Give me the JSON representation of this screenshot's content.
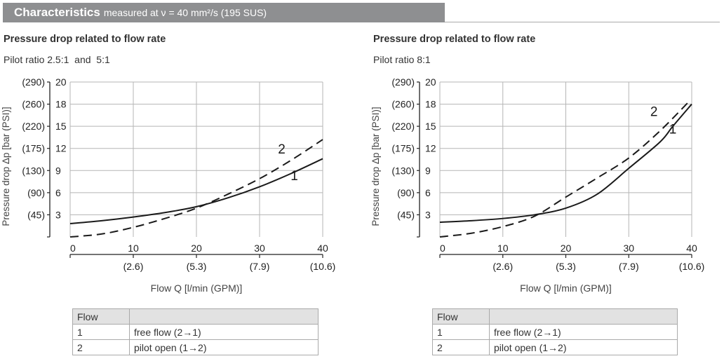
{
  "header": {
    "title": "Characteristics",
    "subtitle": "measured at ν = 40 mm²/s (195 SUS)",
    "color": "#8e8f91"
  },
  "chart_data": [
    {
      "type": "line",
      "title": "Pressure drop related to flow rate",
      "subtitle": "Pilot ratio 2.5:1  and  5:1",
      "xlabel": "Flow Q [l/min (GPM)]",
      "ylabel": "Pressure drop Δp [bar (PSI)]",
      "xlim": [
        0,
        40
      ],
      "ylim": [
        0,
        20
      ],
      "x_ticks": [
        "0",
        "10",
        "20",
        "30",
        "40"
      ],
      "x_ticks_secondary": [
        "(2.6)",
        "(5.3)",
        "(7.9)",
        "(10.6)"
      ],
      "y_ticks": [
        "3",
        "6",
        "9",
        "12",
        "15",
        "18",
        "20"
      ],
      "y_ticks_secondary": [
        "(45)",
        "(90)",
        "(130)",
        "(175)",
        "(220)",
        "(260)",
        "(290)"
      ],
      "grid": true,
      "series": [
        {
          "name": "1",
          "style": "solid",
          "x": [
            0,
            5,
            10,
            15,
            20,
            25,
            30,
            35,
            40
          ],
          "y": [
            1.8,
            2.2,
            2.7,
            3.3,
            4.1,
            5.3,
            6.8,
            8.6,
            10.6
          ]
        },
        {
          "name": "2",
          "style": "dashed",
          "x": [
            0,
            5,
            10,
            15,
            20,
            25,
            30,
            35,
            40
          ],
          "y": [
            0,
            0.4,
            1.3,
            2.5,
            3.9,
            5.8,
            7.9,
            10.4,
            13.2
          ]
        }
      ],
      "annotations": [
        {
          "text": "2",
          "x": 33.5,
          "y": 11.3
        },
        {
          "text": "1",
          "x": 35.5,
          "y": 7.7
        }
      ],
      "legend_table": {
        "header": [
          "Flow",
          ""
        ],
        "rows": [
          [
            "1",
            "free flow (2→1)"
          ],
          [
            "2",
            "pilot open (1→2)"
          ]
        ]
      }
    },
    {
      "type": "line",
      "title": "Pressure drop related to flow rate",
      "subtitle": "Pilot ratio 8:1",
      "xlabel": "Flow Q [l/min (GPM)]",
      "ylabel": "Pressure drop Δp [bar (PSI)]",
      "xlim": [
        0,
        40
      ],
      "ylim": [
        0,
        20
      ],
      "x_ticks": [
        "0",
        "10",
        "20",
        "30",
        "40"
      ],
      "x_ticks_secondary": [
        "(2.6)",
        "(5.3)",
        "(7.9)",
        "(10.6)"
      ],
      "y_ticks": [
        "3",
        "6",
        "9",
        "12",
        "15",
        "18",
        "20"
      ],
      "y_ticks_secondary": [
        "(45)",
        "(90)",
        "(130)",
        "(175)",
        "(220)",
        "(260)",
        "(290)"
      ],
      "grid": true,
      "series": [
        {
          "name": "1",
          "style": "solid",
          "x": [
            0,
            5,
            10,
            15,
            20,
            25,
            30,
            35,
            37,
            40
          ],
          "y": [
            2.0,
            2.2,
            2.5,
            3.0,
            3.9,
            5.8,
            9.3,
            12.9,
            15,
            18
          ]
        },
        {
          "name": "2",
          "style": "dashed",
          "x": [
            0,
            5,
            10,
            15,
            20,
            25,
            30,
            35,
            39.5
          ],
          "y": [
            0,
            0.5,
            1.4,
            2.8,
            5.4,
            8.0,
            10.7,
            14.4,
            18.2
          ]
        }
      ],
      "annotations": [
        {
          "text": "2",
          "x": 34,
          "y": 16.4
        },
        {
          "text": "1",
          "x": 37,
          "y": 14
        }
      ],
      "legend_table": {
        "header": [
          "Flow",
          ""
        ],
        "rows": [
          [
            "1",
            "free flow (2→1)"
          ],
          [
            "2",
            "pilot open (1→2)"
          ]
        ]
      }
    }
  ]
}
